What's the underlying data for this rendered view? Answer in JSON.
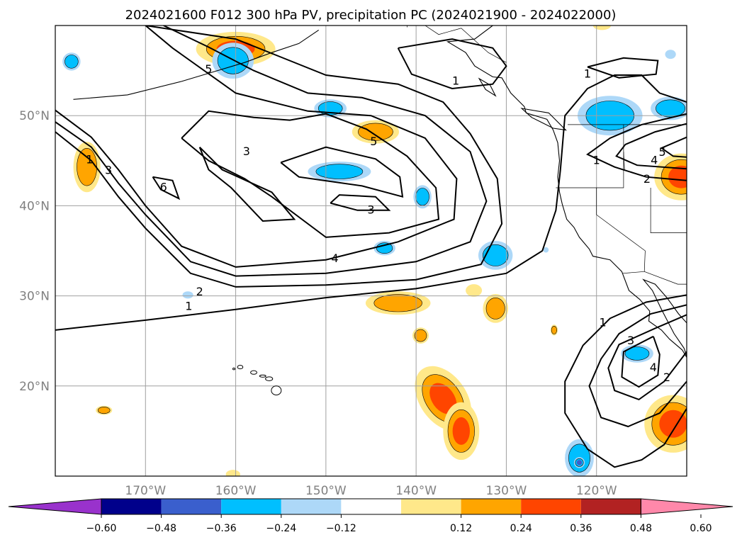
{
  "title": "2024021600 F012 300 hPa PV, precipitation PC (2024021900 - 2024022000)",
  "chart_data": {
    "type": "heatmap",
    "title": "2024021600 F012 300 hPa PV, precipitation PC (2024021900 - 2024022000)",
    "map_extent": {
      "lon": [
        -180,
        -110
      ],
      "lat": [
        10,
        60
      ]
    },
    "grid": true,
    "xticks": [
      {
        "lon": -170,
        "label": "170°W"
      },
      {
        "lon": -160,
        "label": "160°W"
      },
      {
        "lon": -150,
        "label": "150°W"
      },
      {
        "lon": -140,
        "label": "140°W"
      },
      {
        "lon": -130,
        "label": "130°W"
      },
      {
        "lon": -120,
        "label": "120°W"
      }
    ],
    "yticks": [
      {
        "lat": 20,
        "label": "20°N"
      },
      {
        "lat": 30,
        "label": "30°N"
      },
      {
        "lat": 40,
        "label": "40°N"
      },
      {
        "lat": 50,
        "label": "50°N"
      }
    ],
    "colorbar": {
      "ticks": [
        "−0.60",
        "−0.48",
        "−0.36",
        "−0.24",
        "−0.12",
        "0.12",
        "0.24",
        "0.36",
        "0.48",
        "0.60"
      ],
      "colors": [
        "#9932cc",
        "#00008b",
        "#3a5fcd",
        "#00bfff",
        "#add8f8",
        "#ffffff",
        "#ffe88a",
        "#ffa500",
        "#ff4500",
        "#b22222",
        "#ff88aa"
      ],
      "extend": "both"
    },
    "contour_levels": [
      1,
      2,
      3,
      4,
      5,
      6
    ],
    "contour_labels": [
      {
        "text": "1",
        "lon": -135.6,
        "lat": 53.9
      },
      {
        "text": "1",
        "lon": -121.0,
        "lat": 54.7
      },
      {
        "text": "1",
        "lon": -165.2,
        "lat": 28.9
      },
      {
        "text": "1",
        "lon": -176.2,
        "lat": 45.2
      },
      {
        "text": "1",
        "lon": -120.0,
        "lat": 45.1
      },
      {
        "text": "1",
        "lon": -119.3,
        "lat": 27.1
      },
      {
        "text": "2",
        "lon": -164.0,
        "lat": 30.5
      },
      {
        "text": "2",
        "lon": -114.4,
        "lat": 43.0
      },
      {
        "text": "2",
        "lon": -112.2,
        "lat": 21.0
      },
      {
        "text": "3",
        "lon": -174.1,
        "lat": 44.0
      },
      {
        "text": "3",
        "lon": -158.8,
        "lat": 46.1
      },
      {
        "text": "3",
        "lon": -145.0,
        "lat": 39.6
      },
      {
        "text": "3",
        "lon": -116.2,
        "lat": 25.1
      },
      {
        "text": "4",
        "lon": -149.0,
        "lat": 34.2
      },
      {
        "text": "4",
        "lon": -113.6,
        "lat": 45.1
      },
      {
        "text": "4",
        "lon": -113.7,
        "lat": 22.1
      },
      {
        "text": "5",
        "lon": -163.0,
        "lat": 55.2
      },
      {
        "text": "5",
        "lon": -144.7,
        "lat": 47.2
      },
      {
        "text": "5",
        "lon": -112.7,
        "lat": 46.0
      },
      {
        "text": "6",
        "lon": -168.0,
        "lat": 42.1
      }
    ]
  }
}
